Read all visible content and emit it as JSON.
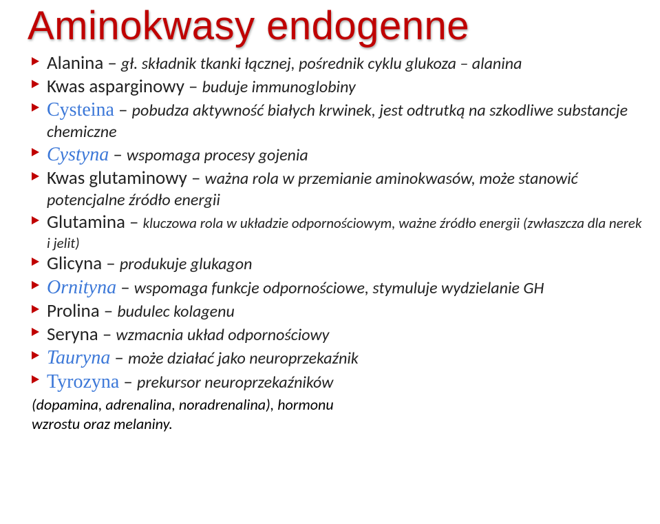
{
  "title": "Aminokwasy endogenne",
  "colors": {
    "title": "#c00000",
    "bullet": "#c00000",
    "term_link": "#3c78d8",
    "body_text": "#222222",
    "background": "#ffffff"
  },
  "items": [
    {
      "name": "Alanina",
      "name_class": "name-plain",
      "dash": " – ",
      "desc": "gł. składnik tkanki łącznej, pośrednik cyklu glukoza – alanina",
      "desc_class": "desc"
    },
    {
      "name": "Kwas asparginowy",
      "name_class": "name-plain",
      "dash": " – ",
      "desc": "buduje immunoglobiny",
      "desc_class": "desc"
    },
    {
      "name": "Cysteina",
      "name_class": "name-term",
      "dash": " – ",
      "desc": "pobudza aktywność białych krwinek, jest odtrutką na szkodliwe substancje chemiczne",
      "desc_class": "desc"
    },
    {
      "name": "Cystyna",
      "name_class": "name-term-em",
      "dash": " – ",
      "desc": "wspomaga procesy gojenia",
      "desc_class": "desc"
    },
    {
      "name": "Kwas glutaminowy",
      "name_class": "name-plain",
      "dash": " – ",
      "desc": "ważna rola w przemianie aminokwasów, może stanowić potencjalne źródło energii",
      "desc_class": "desc"
    },
    {
      "name": "Glutamina",
      "name_class": "name-plain",
      "dash": " – ",
      "desc": "kluczowa rola w układzie odpornościowym, ważne źródło energii (zwłaszcza  dla nerek i jelit)",
      "desc_class": "desc-sm"
    },
    {
      "name": "Glicyna",
      "name_class": "name-plain",
      "dash": " – ",
      "desc": "produkuje glukagon",
      "desc_class": "desc"
    },
    {
      "name": "Ornityna",
      "name_class": "name-term-em",
      "dash": " – ",
      "desc": "wspomaga funkcje odpornościowe, stymuluje wydzielanie GH",
      "desc_class": "desc"
    },
    {
      "name": "Prolina",
      "name_class": "name-plain",
      "dash": " – ",
      "desc": "budulec kolagenu",
      "desc_class": "desc"
    },
    {
      "name": "Seryna",
      "name_class": "name-plain",
      "dash": " – ",
      "desc": "wzmacnia układ odpornościowy",
      "desc_class": "desc"
    },
    {
      "name": "Tauryna",
      "name_class": "name-term-em",
      "dash": " – ",
      "desc": "może działać jako neuroprzekaźnik",
      "desc_class": "desc"
    },
    {
      "name": "Tyrozyna",
      "name_class": "name-term",
      "dash": " – ",
      "desc": "prekursor neuroprzekaźników",
      "desc_class": "desc"
    }
  ],
  "footnote_line1": "(dopamina, adrenalina, noradrenalina),  hormonu",
  "footnote_line2": " wzrostu oraz melaniny."
}
